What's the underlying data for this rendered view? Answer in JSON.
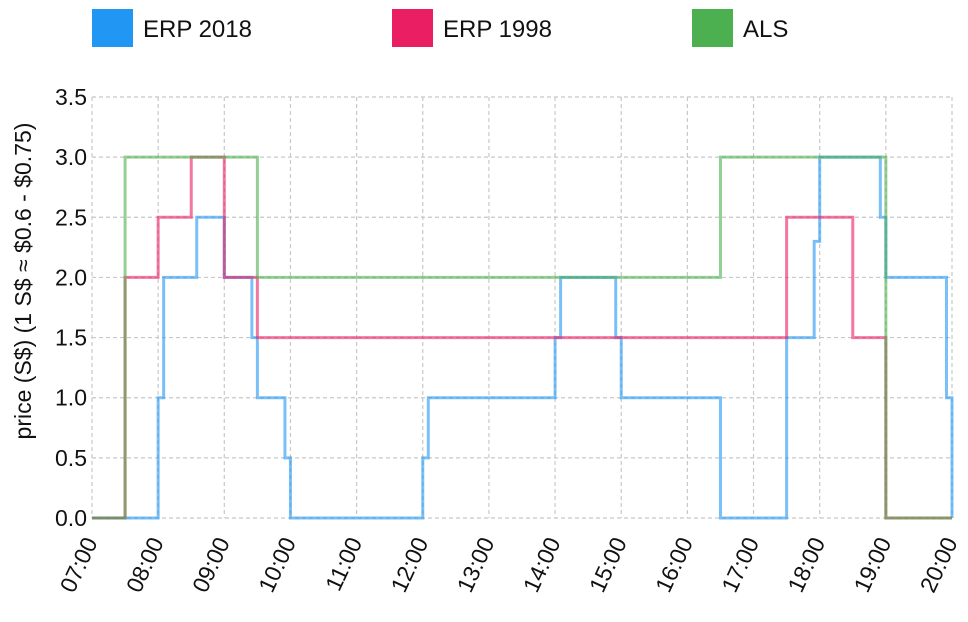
{
  "chart_data": {
    "type": "line",
    "step": true,
    "ylabel": "price (S$) (1 S$ ≈ $0.6 - $0.75)",
    "xlabel": "",
    "xlim": [
      "07:00",
      "20:00"
    ],
    "ylim": [
      0,
      3.5
    ],
    "grid": true,
    "legend_position": "top",
    "x_ticks": [
      "07:00",
      "08:00",
      "09:00",
      "10:00",
      "11:00",
      "12:00",
      "13:00",
      "14:00",
      "15:00",
      "16:00",
      "17:00",
      "18:00",
      "19:00",
      "20:00"
    ],
    "y_ticks": [
      "0.0",
      "0.5",
      "1.0",
      "1.5",
      "2.0",
      "2.5",
      "3.0",
      "3.5"
    ],
    "series": [
      {
        "name": "ERP 2018",
        "color": "#2196f3",
        "points": [
          [
            "07:00",
            0
          ],
          [
            "07:30",
            0
          ],
          [
            "07:30",
            0
          ],
          [
            "08:00",
            0
          ],
          [
            "08:00",
            1
          ],
          [
            "08:05",
            1
          ],
          [
            "08:05",
            2
          ],
          [
            "08:35",
            2
          ],
          [
            "08:35",
            2.5
          ],
          [
            "09:00",
            2.5
          ],
          [
            "09:00",
            2
          ],
          [
            "09:25",
            2
          ],
          [
            "09:25",
            1.5
          ],
          [
            "09:30",
            1.5
          ],
          [
            "09:30",
            1
          ],
          [
            "09:55",
            1
          ],
          [
            "09:55",
            0.5
          ],
          [
            "10:00",
            0.5
          ],
          [
            "10:00",
            0
          ],
          [
            "12:00",
            0
          ],
          [
            "12:00",
            0.5
          ],
          [
            "12:05",
            0.5
          ],
          [
            "12:05",
            1
          ],
          [
            "14:00",
            1
          ],
          [
            "14:00",
            1.5
          ],
          [
            "14:05",
            1.5
          ],
          [
            "14:05",
            2
          ],
          [
            "14:55",
            2
          ],
          [
            "14:55",
            1.5
          ],
          [
            "15:00",
            1.5
          ],
          [
            "15:00",
            1
          ],
          [
            "16:30",
            1
          ],
          [
            "16:30",
            0
          ],
          [
            "17:30",
            0
          ],
          [
            "17:30",
            1.5
          ],
          [
            "17:55",
            1.5
          ],
          [
            "17:55",
            2.3
          ],
          [
            "18:00",
            2.3
          ],
          [
            "18:00",
            3
          ],
          [
            "18:55",
            3
          ],
          [
            "18:55",
            2.5
          ],
          [
            "19:00",
            2.5
          ],
          [
            "19:00",
            2
          ],
          [
            "19:55",
            2
          ],
          [
            "19:55",
            1
          ],
          [
            "20:00",
            1
          ],
          [
            "20:00",
            0
          ]
        ]
      },
      {
        "name": "ERP 1998",
        "color": "#e91e63",
        "points": [
          [
            "07:00",
            0
          ],
          [
            "07:30",
            0
          ],
          [
            "07:30",
            2
          ],
          [
            "08:00",
            2
          ],
          [
            "08:00",
            2.5
          ],
          [
            "08:30",
            2.5
          ],
          [
            "08:30",
            3
          ],
          [
            "09:00",
            3
          ],
          [
            "09:00",
            2
          ],
          [
            "09:30",
            2
          ],
          [
            "09:30",
            1.5
          ],
          [
            "17:30",
            1.5
          ],
          [
            "17:30",
            2.5
          ],
          [
            "18:30",
            2.5
          ],
          [
            "18:30",
            1.5
          ],
          [
            "19:00",
            1.5
          ],
          [
            "19:00",
            0
          ],
          [
            "20:00",
            0
          ]
        ]
      },
      {
        "name": "ALS",
        "color": "#4caf50",
        "points": [
          [
            "07:00",
            0
          ],
          [
            "07:30",
            0
          ],
          [
            "07:30",
            3
          ],
          [
            "09:30",
            3
          ],
          [
            "09:30",
            2
          ],
          [
            "16:30",
            2
          ],
          [
            "16:30",
            3
          ],
          [
            "19:00",
            3
          ],
          [
            "19:00",
            0
          ],
          [
            "20:00",
            0
          ]
        ]
      }
    ]
  }
}
